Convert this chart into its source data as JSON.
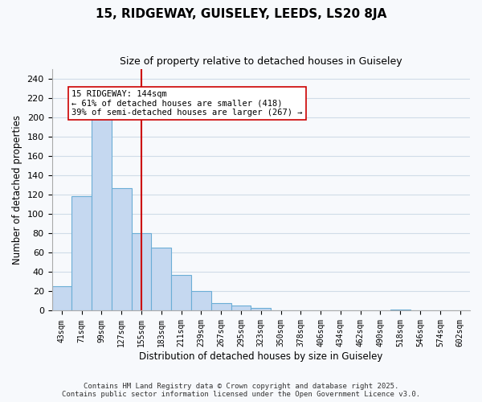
{
  "title": "15, RIDGEWAY, GUISELEY, LEEDS, LS20 8JA",
  "subtitle": "Size of property relative to detached houses in Guiseley",
  "xlabel": "Distribution of detached houses by size in Guiseley",
  "ylabel": "Number of detached properties",
  "bin_labels": [
    "43sqm",
    "71sqm",
    "99sqm",
    "127sqm",
    "155sqm",
    "183sqm",
    "211sqm",
    "239sqm",
    "267sqm",
    "295sqm",
    "323sqm",
    "350sqm",
    "378sqm",
    "406sqm",
    "434sqm",
    "462sqm",
    "490sqm",
    "518sqm",
    "546sqm",
    "574sqm",
    "602sqm"
  ],
  "bar_values": [
    25,
    118,
    200,
    127,
    80,
    65,
    37,
    20,
    8,
    5,
    3,
    0,
    0,
    0,
    0,
    0,
    0,
    1,
    0,
    0,
    0
  ],
  "bar_color": "#c5d8f0",
  "bar_edge_color": "#6baed6",
  "vline_x": 4,
  "vline_color": "#cc0000",
  "annotation_text": "15 RIDGEWAY: 144sqm\n← 61% of detached houses are smaller (418)\n39% of semi-detached houses are larger (267) →",
  "annotation_box_color": "white",
  "annotation_box_edge": "#cc0000",
  "ylim": [
    0,
    250
  ],
  "yticks": [
    0,
    20,
    40,
    60,
    80,
    100,
    120,
    140,
    160,
    180,
    200,
    220,
    240
  ],
  "footer_line1": "Contains HM Land Registry data © Crown copyright and database right 2025.",
  "footer_line2": "Contains public sector information licensed under the Open Government Licence v3.0.",
  "bg_color": "#f7f9fc",
  "grid_color": "#d0dce8"
}
